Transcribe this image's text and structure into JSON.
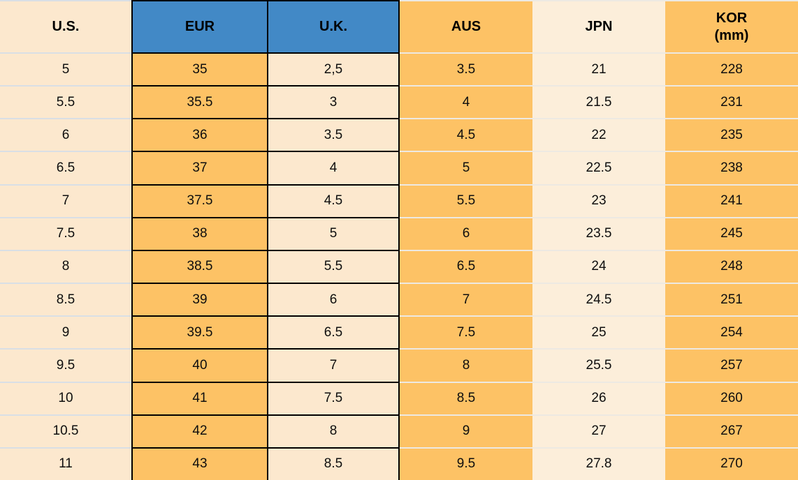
{
  "chart_data": {
    "type": "table",
    "columns": [
      "U.S.",
      "EUR",
      "U.K.",
      "AUS",
      "JPN",
      "KOR (mm)"
    ],
    "rows": [
      [
        "5",
        "35",
        "2,5",
        "3.5",
        "21",
        "228"
      ],
      [
        "5.5",
        "35.5",
        "3",
        "4",
        "21.5",
        "231"
      ],
      [
        "6",
        "36",
        "3.5",
        "4.5",
        "22",
        "235"
      ],
      [
        "6.5",
        "37",
        "4",
        "5",
        "22.5",
        "238"
      ],
      [
        "7",
        "37.5",
        "4.5",
        "5.5",
        "23",
        "241"
      ],
      [
        "7.5",
        "38",
        "5",
        "6",
        "23.5",
        "245"
      ],
      [
        "8",
        "38.5",
        "5.5",
        "6.5",
        "24",
        "248"
      ],
      [
        "8.5",
        "39",
        "6",
        "7",
        "24.5",
        "251"
      ],
      [
        "9",
        "39.5",
        "6.5",
        "7.5",
        "25",
        "254"
      ],
      [
        "9.5",
        "40",
        "7",
        "8",
        "25.5",
        "257"
      ],
      [
        "10",
        "41",
        "7.5",
        "8.5",
        "26",
        "260"
      ],
      [
        "10.5",
        "42",
        "8",
        "9",
        "27",
        "267"
      ],
      [
        "11",
        "43",
        "8.5",
        "9.5",
        "27.8",
        "270"
      ]
    ]
  },
  "header": {
    "us": "U.S.",
    "eur": "EUR",
    "uk": "U.K.",
    "aus": "AUS",
    "jpn": "JPN",
    "kor_line1": "KOR",
    "kor_line2": "(mm)"
  },
  "colors": {
    "header_blue": "#4289C6",
    "orange": "#FDC265",
    "cream": "#FCE8CE",
    "cream_light": "#FCEEDA",
    "black_border": "#000000",
    "light_separator_left": "#D9DFE5",
    "light_separator_right": "#EDE9E2",
    "text": "#0E0E0E"
  }
}
